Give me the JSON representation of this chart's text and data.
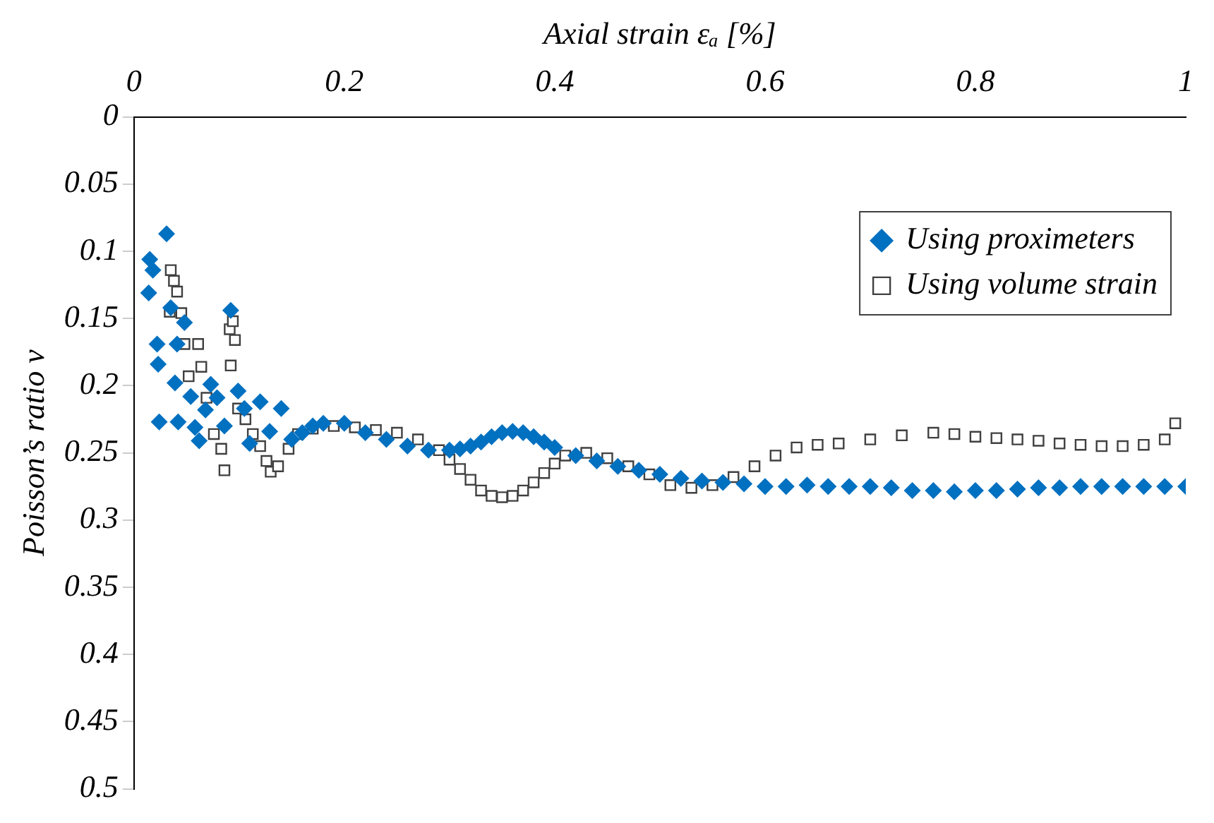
{
  "chart_data": {
    "type": "scatter",
    "xlabel": "Axial strain εₐ [%]",
    "ylabel": "Poisson’s ratio ν",
    "xlim": [
      0,
      1
    ],
    "xticks": [
      0,
      0.2,
      0.4,
      0.6,
      0.8,
      1
    ],
    "ylim": [
      0.5,
      0
    ],
    "yticks": [
      0,
      0.05,
      0.1,
      0.15,
      0.2,
      0.25,
      0.3,
      0.35,
      0.4,
      0.45,
      0.5
    ],
    "grid": false,
    "legend": "top right",
    "series": [
      {
        "name": "Using proximeters",
        "color": "#0070c0",
        "marker": "diamond",
        "x": [
          0.015,
          0.018,
          0.014,
          0.022,
          0.023,
          0.024,
          0.031,
          0.035,
          0.041,
          0.039,
          0.042,
          0.048,
          0.054,
          0.058,
          0.062,
          0.068,
          0.073,
          0.079,
          0.086,
          0.092,
          0.099,
          0.105,
          0.11,
          0.12,
          0.129,
          0.14,
          0.15,
          0.16,
          0.17,
          0.18,
          0.2,
          0.22,
          0.24,
          0.26,
          0.28,
          0.3,
          0.31,
          0.32,
          0.33,
          0.34,
          0.35,
          0.36,
          0.37,
          0.38,
          0.39,
          0.4,
          0.42,
          0.44,
          0.46,
          0.48,
          0.5,
          0.52,
          0.54,
          0.56,
          0.58,
          0.6,
          0.62,
          0.64,
          0.66,
          0.68,
          0.7,
          0.72,
          0.74,
          0.76,
          0.78,
          0.8,
          0.82,
          0.84,
          0.86,
          0.88,
          0.9,
          0.92,
          0.94,
          0.96,
          0.98,
          1.0
        ],
        "values": [
          0.106,
          0.114,
          0.131,
          0.169,
          0.184,
          0.227,
          0.087,
          0.142,
          0.169,
          0.198,
          0.227,
          0.153,
          0.208,
          0.231,
          0.241,
          0.218,
          0.199,
          0.209,
          0.23,
          0.144,
          0.204,
          0.217,
          0.243,
          0.212,
          0.234,
          0.217,
          0.24,
          0.235,
          0.23,
          0.228,
          0.228,
          0.235,
          0.24,
          0.245,
          0.248,
          0.248,
          0.247,
          0.245,
          0.242,
          0.238,
          0.235,
          0.234,
          0.235,
          0.238,
          0.242,
          0.246,
          0.252,
          0.256,
          0.26,
          0.263,
          0.266,
          0.269,
          0.271,
          0.272,
          0.273,
          0.275,
          0.275,
          0.274,
          0.275,
          0.275,
          0.275,
          0.276,
          0.278,
          0.278,
          0.279,
          0.278,
          0.278,
          0.277,
          0.276,
          0.276,
          0.275,
          0.275,
          0.275,
          0.275,
          0.275,
          0.275
        ]
      },
      {
        "name": "Using volume strain",
        "color": "#404040",
        "marker": "square",
        "x": [
          0.035,
          0.038,
          0.041,
          0.034,
          0.045,
          0.048,
          0.061,
          0.052,
          0.064,
          0.069,
          0.076,
          0.083,
          0.086,
          0.091,
          0.094,
          0.096,
          0.092,
          0.099,
          0.106,
          0.113,
          0.12,
          0.126,
          0.13,
          0.137,
          0.147,
          0.156,
          0.17,
          0.19,
          0.21,
          0.23,
          0.25,
          0.27,
          0.29,
          0.3,
          0.31,
          0.32,
          0.33,
          0.34,
          0.35,
          0.36,
          0.37,
          0.38,
          0.39,
          0.4,
          0.41,
          0.43,
          0.45,
          0.47,
          0.49,
          0.51,
          0.53,
          0.55,
          0.57,
          0.59,
          0.61,
          0.63,
          0.65,
          0.67,
          0.7,
          0.73,
          0.76,
          0.78,
          0.8,
          0.82,
          0.84,
          0.86,
          0.88,
          0.9,
          0.92,
          0.94,
          0.96,
          0.98,
          0.99
        ],
        "values": [
          0.114,
          0.122,
          0.13,
          0.145,
          0.146,
          0.169,
          0.169,
          0.193,
          0.186,
          0.209,
          0.236,
          0.247,
          0.263,
          0.158,
          0.152,
          0.166,
          0.185,
          0.217,
          0.225,
          0.236,
          0.245,
          0.256,
          0.264,
          0.26,
          0.247,
          0.236,
          0.232,
          0.23,
          0.231,
          0.233,
          0.235,
          0.24,
          0.248,
          0.255,
          0.262,
          0.27,
          0.278,
          0.282,
          0.283,
          0.282,
          0.278,
          0.272,
          0.265,
          0.258,
          0.252,
          0.25,
          0.254,
          0.26,
          0.266,
          0.274,
          0.276,
          0.274,
          0.268,
          0.26,
          0.252,
          0.246,
          0.244,
          0.243,
          0.24,
          0.237,
          0.235,
          0.236,
          0.238,
          0.239,
          0.24,
          0.241,
          0.243,
          0.244,
          0.245,
          0.245,
          0.244,
          0.24,
          0.228
        ]
      }
    ]
  }
}
